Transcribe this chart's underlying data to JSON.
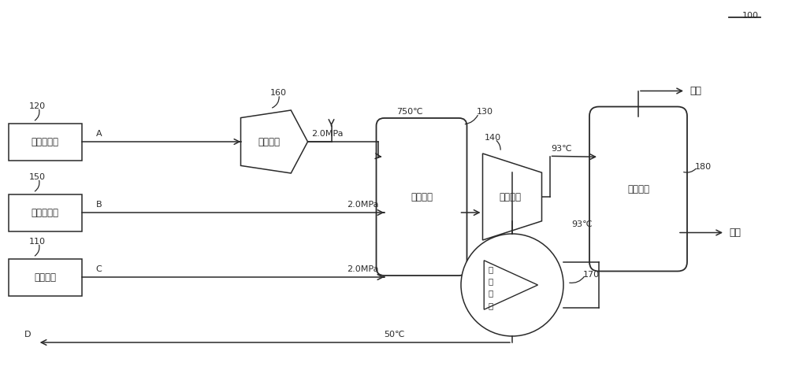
{
  "bg": "#ffffff",
  "lc": "#2a2a2a",
  "tc": "#2a2a2a",
  "figsize": [
    10.0,
    4.7
  ],
  "dpi": 100,
  "font": "SimHei",
  "fs": 9,
  "fsl": 8,
  "box1_label": "可燃气体源",
  "box2_label": "助燃气体源",
  "box3_label": "回收装置",
  "proc_label": "处理装置",
  "comb_label": "燃烧装置",
  "gen_label": "发电装置",
  "flash_label": "闪蜗装置",
  "cond_label1": "冷",
  "cond_label2": "凝",
  "cond_label3": "装",
  "cond_label4": "置",
  "label_120": "120",
  "label_150": "150",
  "label_110": "110",
  "label_160": "160",
  "label_130": "130",
  "label_140": "140",
  "label_180": "180",
  "label_170": "170",
  "label_100": "100",
  "text_A": "A",
  "text_B": "B",
  "text_C": "C",
  "text_D": "D",
  "text_2mpa1": "2.0MPa",
  "text_2mpa2": "2.0MPa",
  "text_2mpa3": "2.0MPa",
  "text_750": "750℃",
  "text_93a": "93℃",
  "text_93b": "93℃",
  "text_50": "50℃",
  "text_paiqi": "排气",
  "text_gongre": "供热"
}
